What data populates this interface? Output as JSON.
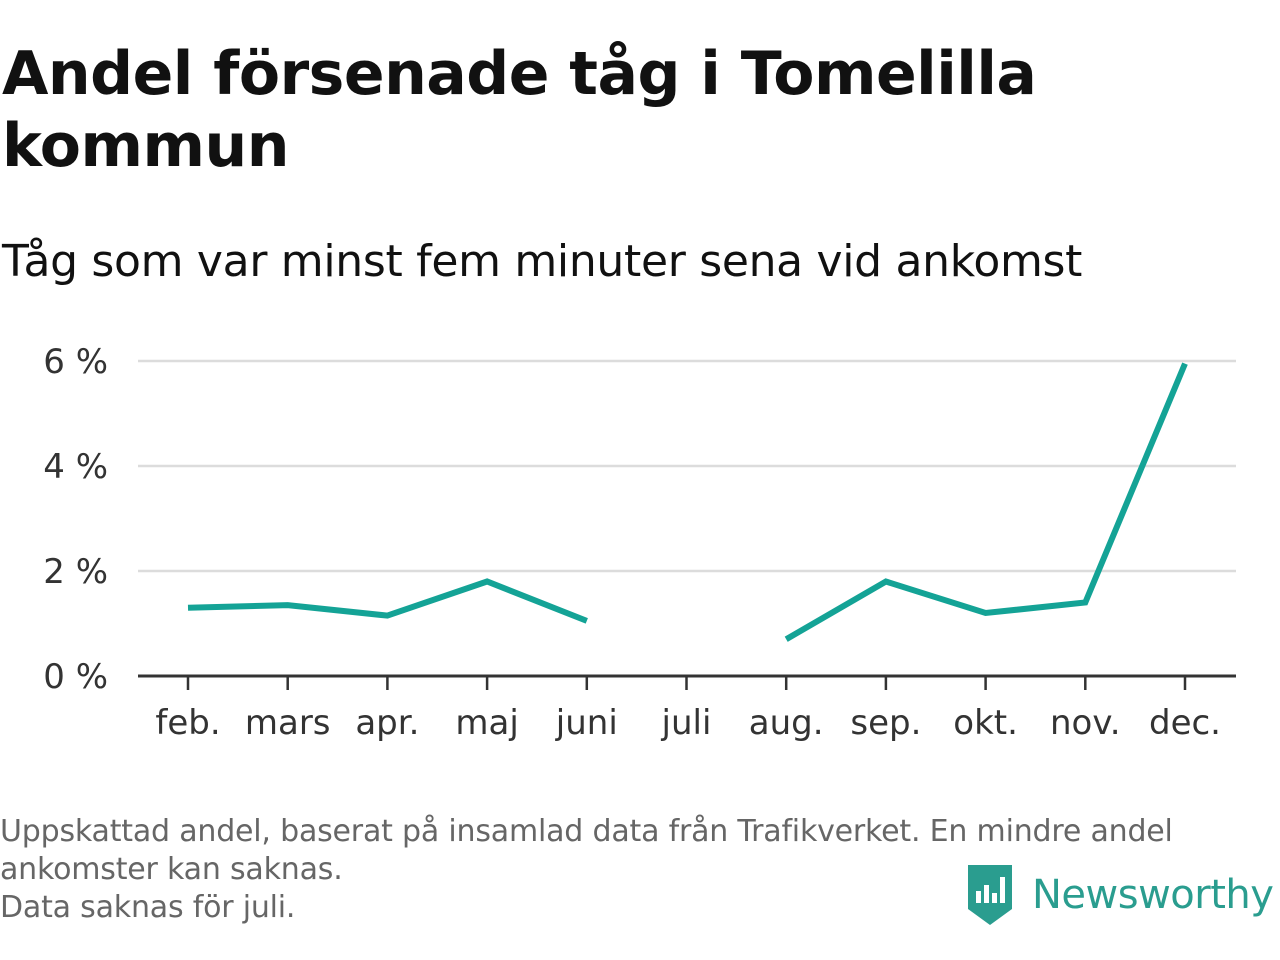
{
  "title": "Andel försenade tåg i Tomelilla kommun",
  "subtitle": "Tåg som var minst fem minuter sena vid ankomst",
  "footnote": {
    "line1": "Uppskattad andel, baserat på insamlad data från Trafikverket. En mindre andel",
    "line2": "ankomster kan saknas.",
    "line3": "Data saknas för juli."
  },
  "brand": {
    "name": "Newsworthy",
    "icon": "newsworthy-logo-icon",
    "color": "#2a9d8f"
  },
  "chart_data": {
    "type": "line",
    "categories": [
      "feb.",
      "mars",
      "apr.",
      "maj",
      "juni",
      "juli",
      "aug.",
      "sep.",
      "okt.",
      "nov.",
      "dec."
    ],
    "series": [
      {
        "values": [
          1.3,
          1.35,
          1.15,
          1.8,
          1.05,
          null,
          0.7,
          1.8,
          1.2,
          1.4,
          5.95
        ],
        "color": "#14a396"
      }
    ],
    "y_ticks": [
      {
        "value": 0,
        "label": "0 %"
      },
      {
        "value": 2,
        "label": "2 %"
      },
      {
        "value": 4,
        "label": "4 %"
      },
      {
        "value": 6,
        "label": "6 %"
      }
    ],
    "ylim": [
      0,
      6
    ],
    "xlabel": "",
    "ylabel": "",
    "grid": true,
    "legend": "none"
  }
}
